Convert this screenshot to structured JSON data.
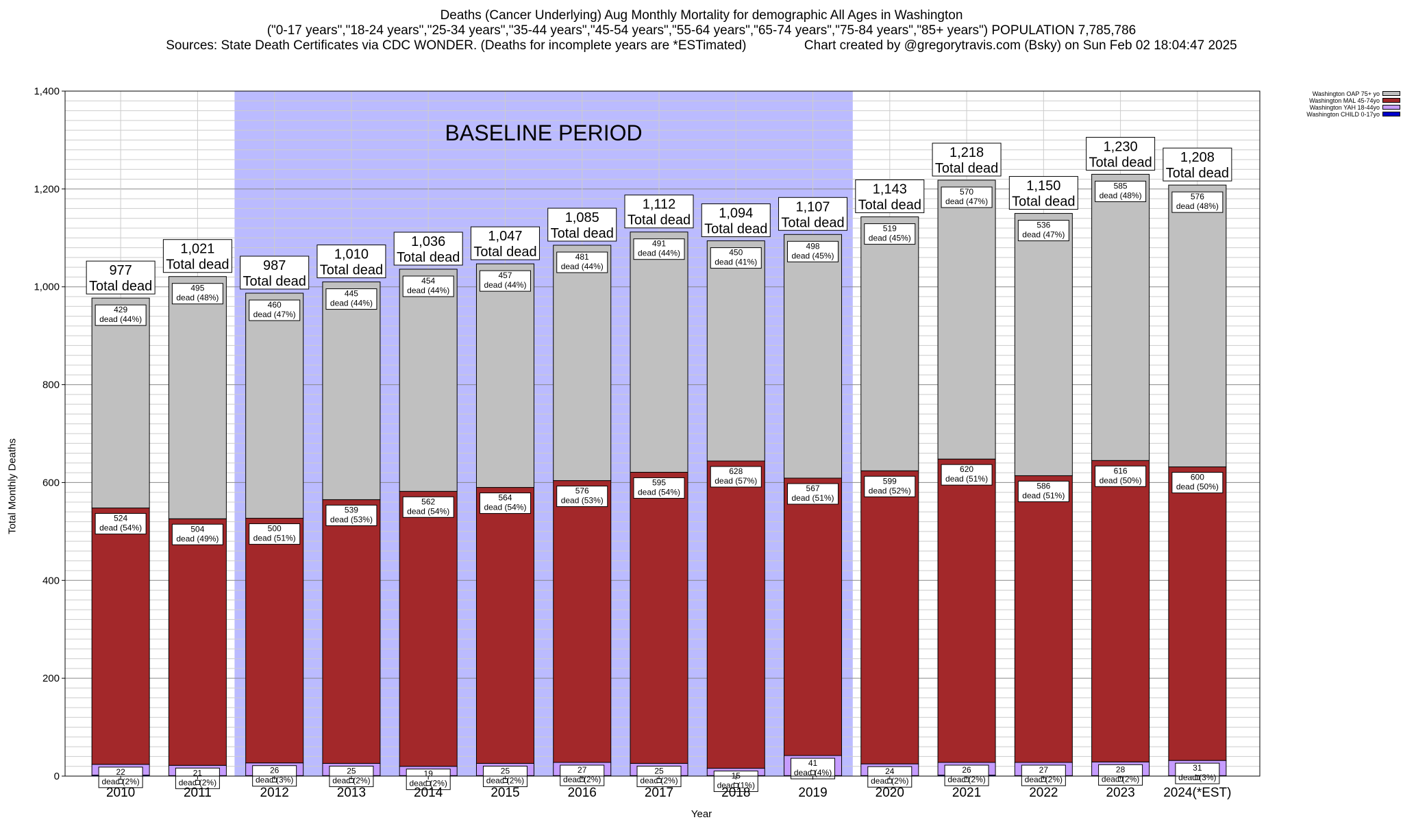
{
  "chart_data": {
    "type": "bar",
    "stacked": true,
    "title": "Deaths (Cancer Underlying) Aug Monthly Mortality for demographic All Ages in Washington",
    "subtitle": "(\"0-17 years\",\"18-24 years\",\"25-34 years\",\"35-44 years\",\"45-54 years\",\"55-64 years\",\"65-74 years\",\"75-84 years\",\"85+ years\") POPULATION 7,785,786",
    "source": "Sources: State Death Certificates via CDC WONDER. (Deaths for incomplete years are *ESTimated)",
    "credit": "Chart created by @gregorytravis.com (Bsky) on Sun Feb 02 18:04:47 2025",
    "xlabel": "Year",
    "ylabel": "Total Monthly Deaths",
    "ylim": [
      0,
      1400
    ],
    "yticks": [
      0,
      200,
      400,
      600,
      800,
      1000,
      1200,
      1400
    ],
    "ytick_labels": [
      "0",
      "200",
      "400",
      "600",
      "800",
      "1,000",
      "1,200",
      "1,400"
    ],
    "grid": true,
    "legend_position": "top-right",
    "baseline_label": "BASELINE PERIOD",
    "baseline_range": [
      "2012",
      "2019"
    ],
    "baseline_color": "#bbbbff",
    "total_suffix": "Total dead",
    "segment_prefix": "dead",
    "categories": [
      "2010",
      "2011",
      "2012",
      "2013",
      "2014",
      "2015",
      "2016",
      "2017",
      "2018",
      "2019",
      "2020",
      "2021",
      "2022",
      "2023",
      "2024(*EST)"
    ],
    "totals": [
      977,
      1021,
      987,
      1010,
      1036,
      1047,
      1085,
      1112,
      1094,
      1107,
      1143,
      1218,
      1150,
      1230,
      1208
    ],
    "total_labels": [
      "977",
      "1,021",
      "987",
      "1,010",
      "1,036",
      "1,047",
      "1,085",
      "1,112",
      "1,094",
      "1,107",
      "1,143",
      "1,218",
      "1,150",
      "1,230",
      "1,208"
    ],
    "series": [
      {
        "name": "Washington CHILD 0-17yo",
        "color": "#0000cc",
        "values": [
          2,
          1,
          1,
          1,
          1,
          1,
          1,
          1,
          1,
          1,
          1,
          2,
          1,
          1,
          1
        ]
      },
      {
        "name": "Washington YAH 18-44yo",
        "color": "#c69cff",
        "values": [
          22,
          21,
          26,
          25,
          19,
          25,
          27,
          25,
          15,
          41,
          24,
          26,
          27,
          28,
          31
        ],
        "pcts": [
          "(2%)",
          "(2%)",
          "(3%)",
          "(2%)",
          "(2%)",
          "(2%)",
          "(2%)",
          "(2%)",
          "(1%)",
          "(4%)",
          "(2%)",
          "(2%)",
          "(2%)",
          "(2%)",
          "(3%)"
        ]
      },
      {
        "name": "Washington MAL 45-74yo",
        "color": "#a3282a",
        "values": [
          524,
          504,
          500,
          539,
          562,
          564,
          576,
          595,
          628,
          567,
          599,
          620,
          586,
          616,
          600
        ],
        "pcts": [
          "(54%)",
          "(49%)",
          "(51%)",
          "(53%)",
          "(54%)",
          "(54%)",
          "(53%)",
          "(54%)",
          "(57%)",
          "(51%)",
          "(52%)",
          "(51%)",
          "(51%)",
          "(50%)",
          "(50%)"
        ]
      },
      {
        "name": "Washington OAP 75+ yo",
        "color": "#c0c0c0",
        "values": [
          429,
          495,
          460,
          445,
          454,
          457,
          481,
          491,
          450,
          498,
          519,
          570,
          536,
          585,
          576
        ],
        "pcts": [
          "(44%)",
          "(48%)",
          "(47%)",
          "(44%)",
          "(44%)",
          "(44%)",
          "(44%)",
          "(44%)",
          "(41%)",
          "(45%)",
          "(45%)",
          "(47%)",
          "(47%)",
          "(48%)",
          "(48%)"
        ]
      }
    ]
  }
}
